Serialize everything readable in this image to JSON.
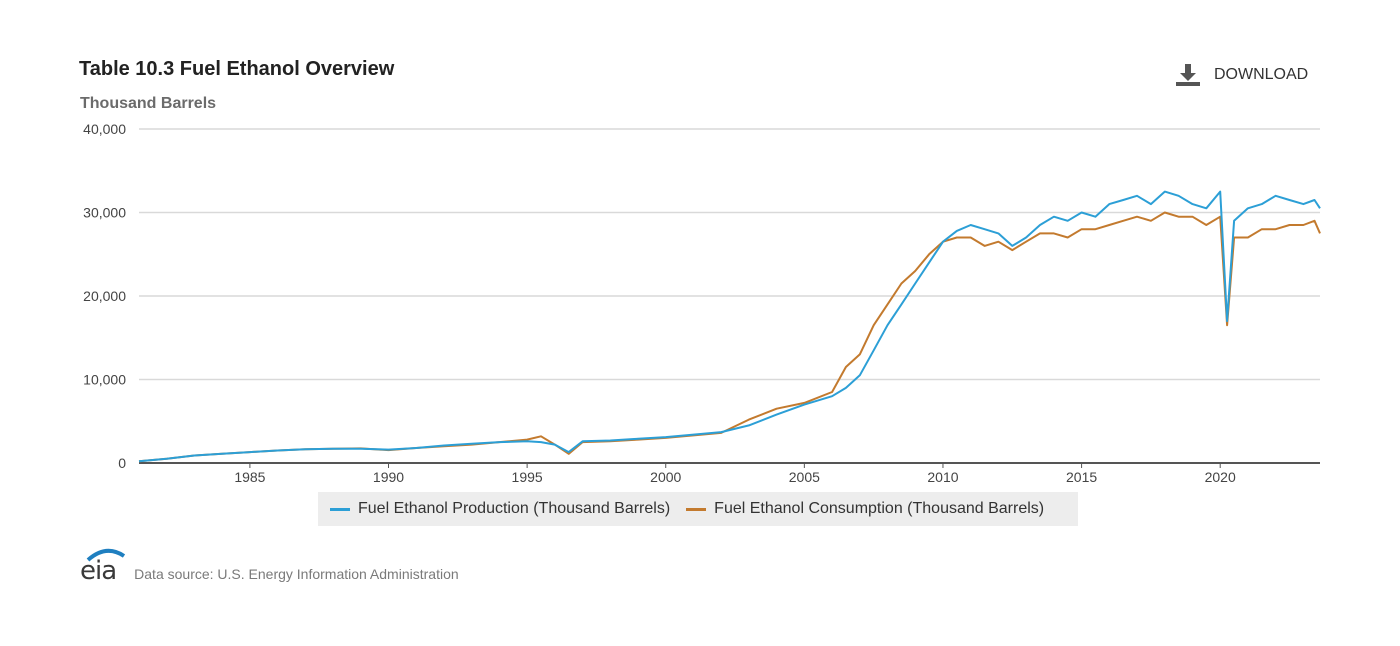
{
  "header": {
    "title": "Table 10.3 Fuel Ethanol Overview",
    "subtitle": "Thousand Barrels",
    "download_label": "DOWNLOAD"
  },
  "footer": {
    "logo_text": "eia",
    "source": "Data source: U.S. Energy Information Administration"
  },
  "colors": {
    "production": "#2c9fd6",
    "consumption": "#c37a2e",
    "grid": "#d9d9d9",
    "axis": "#555555"
  },
  "chart_data": {
    "type": "line",
    "title": "",
    "xlabel": "",
    "ylabel": "Thousand Barrels",
    "xlim": [
      1981,
      2023.6
    ],
    "ylim": [
      0,
      40000
    ],
    "y_ticks": [
      0,
      10000,
      20000,
      30000,
      40000
    ],
    "y_tick_labels": [
      "0",
      "10,000",
      "20,000",
      "30,000",
      "40,000"
    ],
    "x_ticks": [
      1985,
      1990,
      1995,
      2000,
      2005,
      2010,
      2015,
      2020
    ],
    "x_tick_labels": [
      "1985",
      "1990",
      "1995",
      "2000",
      "2005",
      "2010",
      "2015",
      "2020"
    ],
    "grid": true,
    "legend_position": "bottom",
    "series": [
      {
        "name": "Fuel Ethanol Production (Thousand Barrels)",
        "color_key": "production",
        "x": [
          1981,
          1982,
          1983,
          1984,
          1985,
          1986,
          1987,
          1988,
          1989,
          1990,
          1991,
          1992,
          1993,
          1994,
          1995,
          1995.5,
          1996,
          1996.5,
          1997,
          1998,
          1999,
          2000,
          2001,
          2002,
          2003,
          2004,
          2005,
          2006,
          2006.5,
          2007,
          2007.5,
          2008,
          2008.5,
          2009,
          2009.5,
          2010,
          2010.5,
          2011,
          2011.5,
          2012,
          2012.5,
          2013,
          2013.5,
          2014,
          2014.5,
          2015,
          2015.5,
          2016,
          2016.5,
          2017,
          2017.5,
          2018,
          2018.5,
          2019,
          2019.5,
          2020,
          2020.25,
          2020.5,
          2021,
          2021.5,
          2022,
          2022.5,
          2023,
          2023.4,
          2023.6
        ],
        "values": [
          200,
          500,
          900,
          1100,
          1300,
          1500,
          1650,
          1700,
          1700,
          1600,
          1800,
          2100,
          2300,
          2500,
          2600,
          2500,
          2200,
          1300,
          2600,
          2700,
          2900,
          3100,
          3400,
          3700,
          4500,
          5800,
          7000,
          8000,
          9000,
          10500,
          13500,
          16500,
          19000,
          21500,
          24000,
          26500,
          27800,
          28500,
          28000,
          27500,
          26000,
          27000,
          28500,
          29500,
          29000,
          30000,
          29500,
          31000,
          31500,
          32000,
          31000,
          32500,
          32000,
          31000,
          30500,
          32500,
          17000,
          29000,
          30500,
          31000,
          32000,
          31500,
          31000,
          31500,
          30500
        ]
      },
      {
        "name": "Fuel Ethanol Consumption (Thousand Barrels)",
        "color_key": "consumption",
        "x": [
          1981,
          1982,
          1983,
          1984,
          1985,
          1986,
          1987,
          1988,
          1989,
          1990,
          1991,
          1992,
          1993,
          1994,
          1995,
          1995.5,
          1996,
          1996.5,
          1997,
          1998,
          1999,
          2000,
          2001,
          2002,
          2003,
          2004,
          2005,
          2006,
          2006.5,
          2007,
          2007.5,
          2008,
          2008.5,
          2009,
          2009.5,
          2010,
          2010.5,
          2011,
          2011.5,
          2012,
          2012.5,
          2013,
          2013.5,
          2014,
          2014.5,
          2015,
          2015.5,
          2016,
          2016.5,
          2017,
          2017.5,
          2018,
          2018.5,
          2019,
          2019.5,
          2020,
          2020.25,
          2020.5,
          2021,
          2021.5,
          2022,
          2022.5,
          2023,
          2023.4,
          2023.6
        ],
        "values": [
          200,
          500,
          900,
          1100,
          1300,
          1500,
          1650,
          1700,
          1750,
          1550,
          1800,
          2000,
          2200,
          2500,
          2800,
          3200,
          2200,
          1100,
          2500,
          2600,
          2800,
          3000,
          3300,
          3600,
          5200,
          6500,
          7200,
          8500,
          11500,
          13000,
          16500,
          19000,
          21500,
          23000,
          25000,
          26500,
          27000,
          27000,
          26000,
          26500,
          25500,
          26500,
          27500,
          27500,
          27000,
          28000,
          28000,
          28500,
          29000,
          29500,
          29000,
          30000,
          29500,
          29500,
          28500,
          29500,
          16500,
          27000,
          27000,
          28000,
          28000,
          28500,
          28500,
          29000,
          27500
        ]
      }
    ]
  }
}
